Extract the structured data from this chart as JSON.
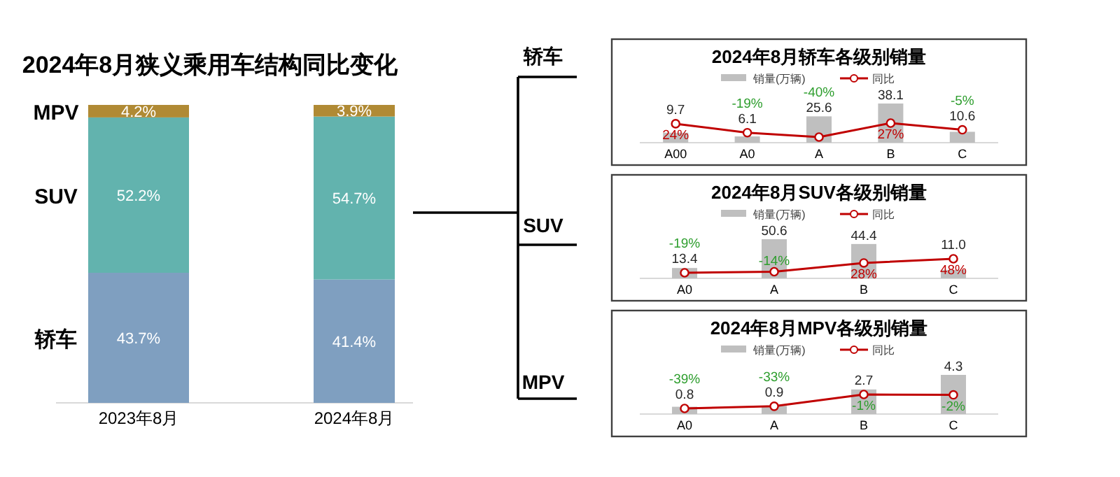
{
  "chart_data": [
    {
      "type": "bar",
      "stacked": true,
      "title": "2024年8月狭义乘用车结构同比变化",
      "categories": [
        "2023年8月",
        "2024年8月"
      ],
      "legend": false,
      "series": [
        {
          "name": "轿车",
          "color": "#7f9fc0",
          "values": [
            43.7,
            41.4
          ],
          "value_labels": [
            "43.7%",
            "41.4%"
          ]
        },
        {
          "name": "SUV",
          "color": "#62b3ae",
          "values": [
            52.2,
            54.7
          ],
          "value_labels": [
            "52.2%",
            "54.7%"
          ]
        },
        {
          "name": "MPV",
          "color": "#b08a34",
          "values": [
            4.2,
            3.9
          ],
          "value_labels": [
            "4.2%",
            "3.9%"
          ]
        }
      ]
    },
    {
      "type": "bar",
      "title": "2024年8月轿车各级别销量",
      "annotations": [
        "轿车"
      ],
      "categories": [
        "A00",
        "A0",
        "A",
        "B",
        "C"
      ],
      "legend": "top",
      "marker": "circle",
      "series": [
        {
          "name": "销量(万辆)",
          "color": "#bfbfbf",
          "values": [
            9.7,
            6.1,
            25.6,
            38.1,
            10.6
          ],
          "value_labels": [
            "9.7",
            "6.1",
            "25.6",
            "38.1",
            "10.6"
          ]
        },
        {
          "name": "同比",
          "type": "line",
          "axis": "y2",
          "color": "#c00000",
          "values": [
            24,
            -19,
            -40,
            27,
            -5
          ],
          "value_labels": [
            "24%",
            "-19%",
            "-40%",
            "27%",
            "-5%"
          ]
        }
      ]
    },
    {
      "type": "bar",
      "title": "2024年8月SUV各级别销量",
      "annotations": [
        "SUV"
      ],
      "categories": [
        "A0",
        "A",
        "B",
        "C"
      ],
      "legend": "top",
      "marker": "circle",
      "series": [
        {
          "name": "销量(万辆)",
          "color": "#bfbfbf",
          "values": [
            13.4,
            50.6,
            44.4,
            11.0
          ],
          "value_labels": [
            "13.4",
            "50.6",
            "44.4",
            "11.0"
          ]
        },
        {
          "name": "同比",
          "type": "line",
          "axis": "y2",
          "color": "#c00000",
          "values": [
            -19,
            -14,
            28,
            48
          ],
          "value_labels": [
            "-19%",
            "-14%",
            "28%",
            "48%"
          ]
        }
      ]
    },
    {
      "type": "bar",
      "title": "2024年8月MPV各级别销量",
      "annotations": [
        "MPV"
      ],
      "categories": [
        "A0",
        "A",
        "B",
        "C"
      ],
      "legend": "top",
      "marker": "circle",
      "series": [
        {
          "name": "销量(万辆)",
          "color": "#bfbfbf",
          "values": [
            0.8,
            0.9,
            2.7,
            4.3
          ],
          "value_labels": [
            "0.8",
            "0.9",
            "2.7",
            "4.3"
          ]
        },
        {
          "name": "同比",
          "type": "line",
          "axis": "y2",
          "color": "#c00000",
          "values": [
            -39,
            -33,
            -1,
            -2
          ],
          "value_labels": [
            "-39%",
            "-33%",
            "-1%",
            "-2%"
          ]
        }
      ]
    }
  ]
}
